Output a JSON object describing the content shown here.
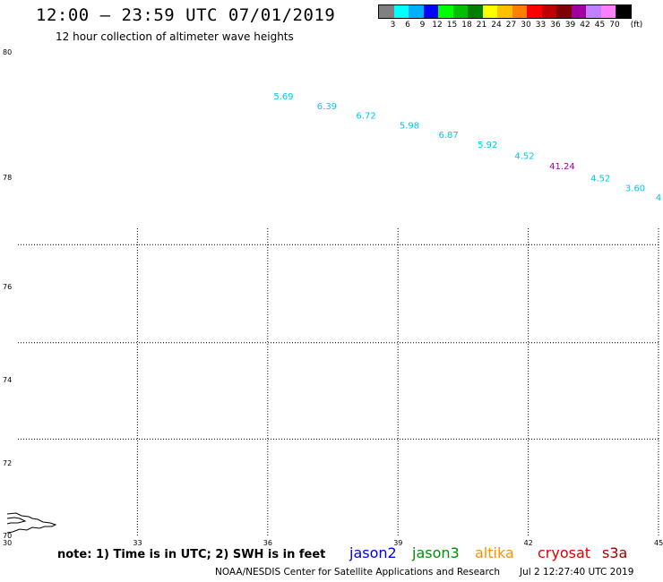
{
  "header": {
    "title": "12:00 — 23:59 UTC 07/01/2019",
    "subtitle": "12 hour collection of altimeter wave heights"
  },
  "scale": {
    "colors": [
      "#808080",
      "#00ffff",
      "#00b0ff",
      "#0000ff",
      "#00ff00",
      "#00c000",
      "#008000",
      "#ffff00",
      "#ffc000",
      "#ff8000",
      "#ff0000",
      "#c00000",
      "#800000",
      "#a000a0",
      "#c080ff",
      "#ff80ff",
      "#000000"
    ],
    "labels": [
      "3",
      "6",
      "9",
      "12",
      "15",
      "18",
      "21",
      "24",
      "27",
      "30",
      "33",
      "36",
      "39",
      "42",
      "45",
      "70",
      "(ft)"
    ]
  },
  "axes": {
    "y_labels": [
      "80",
      "78",
      "76",
      "74",
      "72",
      "70"
    ],
    "x_labels": [
      "30",
      "33",
      "36",
      "39",
      "42",
      "45"
    ]
  },
  "chart_data": {
    "type": "scatter",
    "x_range": [
      30,
      45
    ],
    "y_range": [
      70,
      80
    ],
    "points": [
      {
        "lon": 36.3,
        "lat": 79.05,
        "label": "5.69",
        "color": "#00c8e8"
      },
      {
        "lon": 37.3,
        "lat": 78.85,
        "label": "6.39",
        "color": "#00c8e8"
      },
      {
        "lon": 38.2,
        "lat": 78.65,
        "label": "6.72",
        "color": "#00c8e8"
      },
      {
        "lon": 39.2,
        "lat": 78.45,
        "label": "5.98",
        "color": "#00c8e8"
      },
      {
        "lon": 40.1,
        "lat": 78.25,
        "label": "6.87",
        "color": "#00c8e8"
      },
      {
        "lon": 41.0,
        "lat": 78.05,
        "label": "5.92",
        "color": "#00c8e8"
      },
      {
        "lon": 41.85,
        "lat": 77.82,
        "label": "4.52",
        "color": "#00c8e8"
      },
      {
        "lon": 42.65,
        "lat": 77.6,
        "label": "41.24",
        "color": "#a000a0"
      },
      {
        "lon": 43.6,
        "lat": 77.35,
        "label": "4.52",
        "color": "#00c8e8"
      },
      {
        "lon": 44.4,
        "lat": 77.15,
        "label": "3.60",
        "color": "#00c8e8"
      },
      {
        "lon": 45.1,
        "lat": 76.95,
        "label": "4",
        "color": "#00c8e8"
      }
    ]
  },
  "footer": {
    "note": "note:  1) Time is in UTC;  2) SWH is in feet",
    "satellites": [
      {
        "name": "jason2",
        "color": "#0000e0"
      },
      {
        "name": "jason3",
        "color": "#009000"
      },
      {
        "name": "altika",
        "color": "#ff9000"
      },
      {
        "name": "cryosat",
        "color": "#e00000"
      },
      {
        "name": "s3a",
        "color": "#a00000"
      }
    ],
    "credit": "NOAA/NESDIS Center for Satellite Applications and Research",
    "timestamp": "Jul  2 12:27:40 UTC 2019"
  }
}
